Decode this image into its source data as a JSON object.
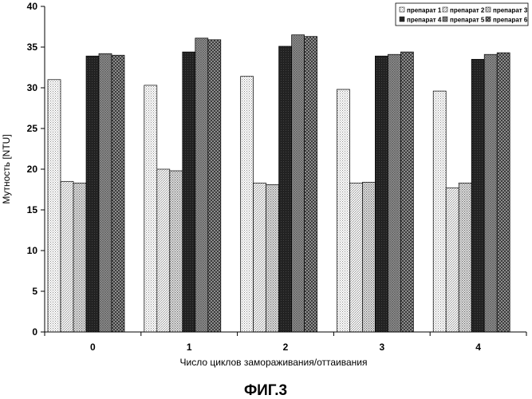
{
  "chart_data": {
    "type": "bar",
    "categories": [
      "0",
      "1",
      "2",
      "3",
      "4"
    ],
    "series": [
      {
        "name": "препарат 1",
        "values": [
          31.0,
          30.3,
          31.4,
          29.8,
          29.6
        ],
        "pattern": "dots-light"
      },
      {
        "name": "препарат 2",
        "values": [
          18.5,
          20.0,
          18.3,
          18.3,
          17.7
        ],
        "pattern": "hatch-light"
      },
      {
        "name": "препарат 3",
        "values": [
          18.3,
          19.8,
          18.1,
          18.4,
          18.3
        ],
        "pattern": "dots-medium"
      },
      {
        "name": "препарат 4",
        "values": [
          33.9,
          34.4,
          35.1,
          33.9,
          33.5
        ],
        "pattern": "dark"
      },
      {
        "name": "препарат 5",
        "values": [
          34.2,
          36.1,
          36.5,
          34.1,
          34.1
        ],
        "pattern": "grid-gray"
      },
      {
        "name": "препарат 6",
        "values": [
          34.0,
          35.9,
          36.3,
          34.4,
          34.3
        ],
        "pattern": "checker-dark"
      }
    ],
    "title": "",
    "xlabel": "Число циклов замораживания/оттаивания",
    "ylabel": "Мутность [NTU]",
    "ylim": [
      0,
      40
    ],
    "yticks": [
      "0",
      "5",
      "10",
      "15",
      "20",
      "25",
      "30",
      "35",
      "40"
    ],
    "grid": false,
    "legend_position": "top-right"
  },
  "caption": "ФИГ.3"
}
